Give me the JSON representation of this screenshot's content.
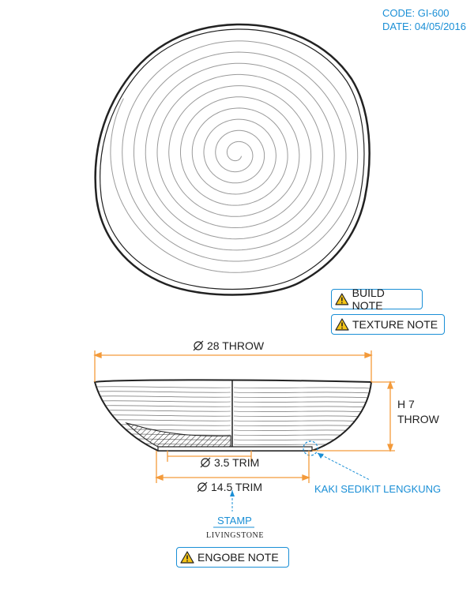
{
  "header": {
    "code": "CODE: GI-600",
    "date": "DATE: 04/05/2016"
  },
  "notes": {
    "build": "BUILD NOTE",
    "texture": "TEXTURE NOTE",
    "engobe": "ENGOBE NOTE"
  },
  "dimensions": {
    "throw_diameter": "28 THROW",
    "height_value": "H 7",
    "height_label": "THROW",
    "inner_trim": "3.5 TRIM",
    "outer_trim": "14.5 TRIM"
  },
  "annotations": {
    "foot_callout": "KAKI SEDIKIT LENGKUNG",
    "stamp_label": "STAMP",
    "stamp_brand": "LIVINGSTONE"
  },
  "colors": {
    "accent": "#1a8fd6",
    "dimension": "#f39a3a",
    "warning": "#f5c518",
    "line": "#222222"
  },
  "icons": {
    "warning": "warning-triangle-icon",
    "diameter": "diameter-symbol-icon"
  }
}
